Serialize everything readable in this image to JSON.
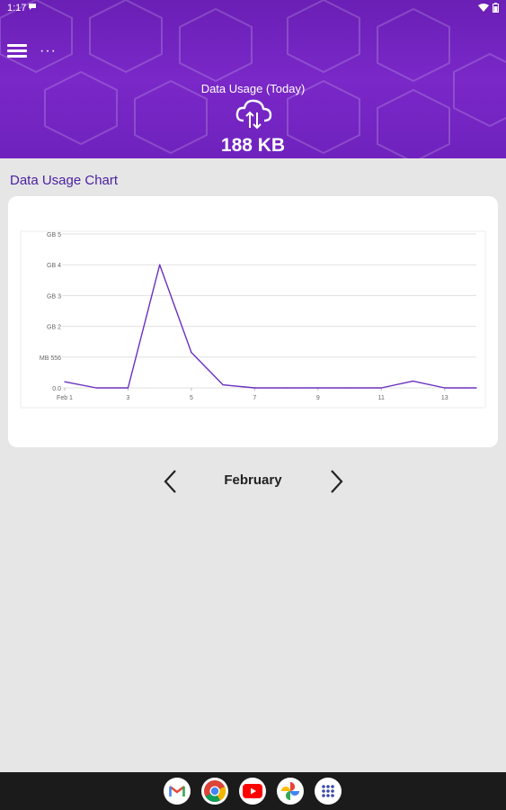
{
  "status_bar": {
    "time": "1:17"
  },
  "header": {
    "usage_title": "Data Usage (Today)",
    "usage_value": "188 KB",
    "dots": "···",
    "colors": {
      "primary": "#7a28c8",
      "accent_text": "#4a1fa0"
    }
  },
  "section": {
    "title": "Data Usage Chart"
  },
  "chart_data": {
    "type": "line",
    "title": "",
    "xlabel": "",
    "ylabel": "",
    "x_tick_labels": [
      "Feb 1",
      "3",
      "5",
      "7",
      "9",
      "11",
      "13"
    ],
    "y_tick_labels": [
      "0.0",
      "MB 556",
      "GB 2",
      "GB 3",
      "GB 4",
      "GB 5"
    ],
    "x": [
      1,
      2,
      3,
      4,
      5,
      6,
      7,
      8,
      9,
      10,
      11,
      12,
      13,
      14
    ],
    "series": [
      {
        "values": [
          0.2,
          0.0,
          0.0,
          4.0,
          1.15,
          0.1,
          0.0,
          0.0,
          0.0,
          0.0,
          0.0,
          0.22,
          0.0,
          0.0
        ],
        "color": "#6a30c0"
      }
    ],
    "ylim": [
      0,
      5
    ],
    "grid": true
  },
  "navigation": {
    "month": "February"
  },
  "dock": {
    "apps": [
      "gmail-icon",
      "chrome-icon",
      "youtube-icon",
      "photos-icon",
      "apps-icon"
    ]
  }
}
